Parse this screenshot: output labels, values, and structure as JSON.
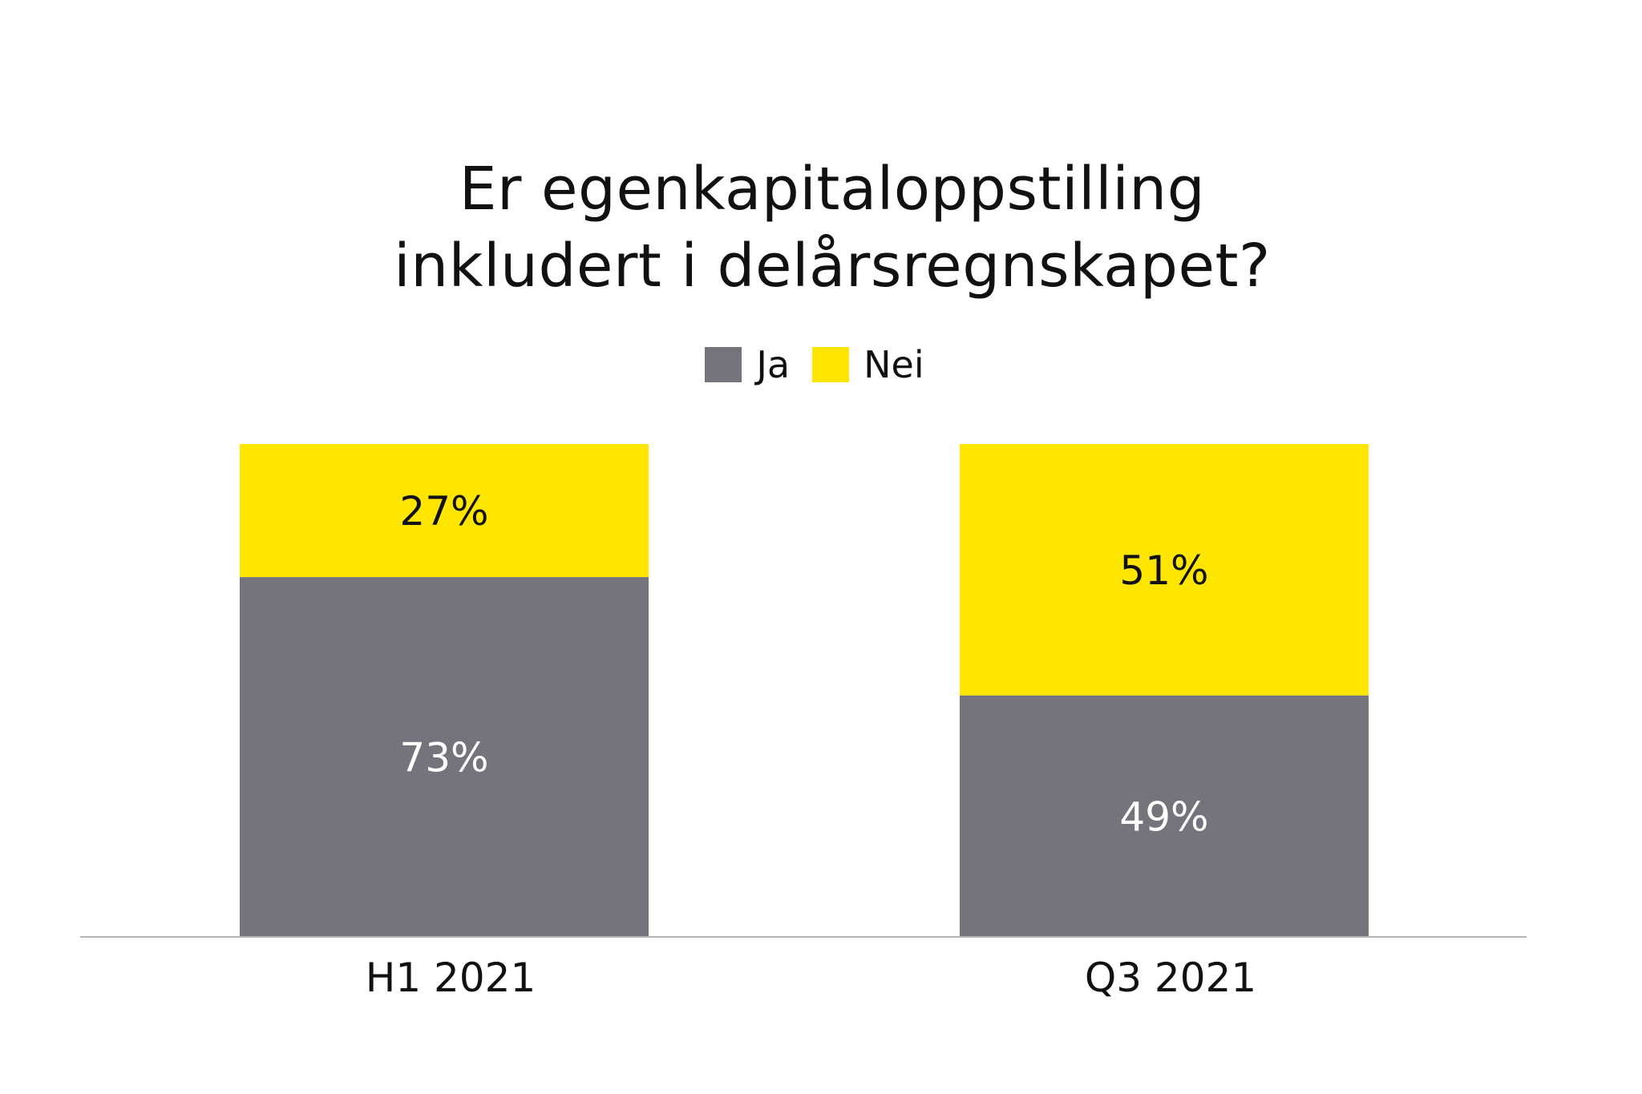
{
  "chart_data": {
    "type": "bar",
    "stacked": true,
    "title_lines": [
      "Er egenkapitaloppstilling",
      "inkludert i delårsregnskapet?"
    ],
    "title": "Er egenkapitaloppstilling inkludert i delårsregnskapet?",
    "xlabel": "",
    "ylabel": "",
    "ylim": [
      0,
      100
    ],
    "grid": false,
    "legend_position": "top-center",
    "categories": [
      "H1 2021",
      "Q3 2021"
    ],
    "series": [
      {
        "name": "Ja",
        "color": "#75747d",
        "label_color": "#ffffff",
        "values": [
          73,
          49
        ],
        "labels": [
          "73%",
          "49%"
        ]
      },
      {
        "name": "Nei",
        "color": "#ffe600",
        "label_color": "#111111",
        "values": [
          27,
          51
        ],
        "labels": [
          "27%",
          "51%"
        ]
      }
    ],
    "axis_color": "#b3b3b3"
  }
}
